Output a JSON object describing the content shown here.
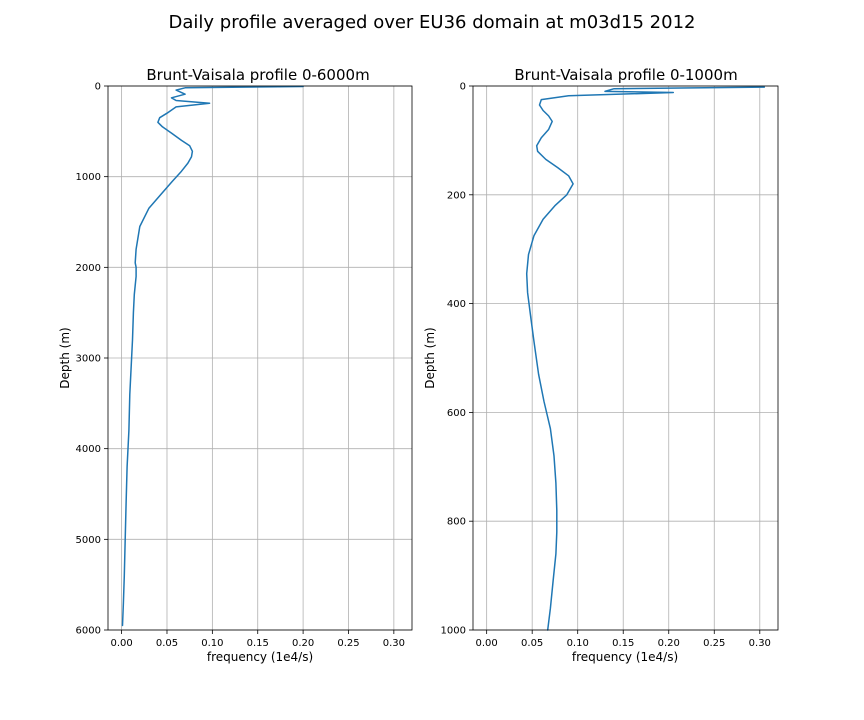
{
  "figure": {
    "suptitle": "Daily profile averaged over EU36 domain at m03d15 2012"
  },
  "chart_data": [
    {
      "type": "line",
      "title": "Brunt-Vaisala profile 0-6000m",
      "xlabel": "frequency (1e4/s)",
      "ylabel": "Depth (m)",
      "xlim": [
        -0.015,
        0.32
      ],
      "ylim": [
        6000,
        0
      ],
      "y_inverted": true,
      "grid": true,
      "xticks": [
        0.0,
        0.05,
        0.1,
        0.15,
        0.2,
        0.25,
        0.3
      ],
      "xtick_labels": [
        "0.00",
        "0.05",
        "0.10",
        "0.15",
        "0.20",
        "0.25",
        "0.30"
      ],
      "yticks": [
        0,
        1000,
        2000,
        3000,
        4000,
        5000,
        6000
      ],
      "ytick_labels": [
        "0",
        "1000",
        "2000",
        "3000",
        "4000",
        "5000",
        "6000"
      ],
      "color": "#1f77b4",
      "series": [
        {
          "x": [
            0.2,
            0.07,
            0.06,
            0.07,
            0.055,
            0.06,
            0.097,
            0.06,
            0.05,
            0.042,
            0.04,
            0.045,
            0.055,
            0.066,
            0.075,
            0.078,
            0.077,
            0.073,
            0.066,
            0.056,
            0.043,
            0.03,
            0.02,
            0.016,
            0.015,
            0.016,
            0.016,
            0.014,
            0.013,
            0.012,
            0.011,
            0.009,
            0.008,
            0.006,
            0.005,
            0.004,
            0.003,
            0.002,
            0.001
          ],
          "y": [
            5,
            20,
            45,
            90,
            130,
            160,
            190,
            230,
            300,
            350,
            400,
            450,
            520,
            600,
            660,
            720,
            780,
            850,
            940,
            1050,
            1200,
            1350,
            1550,
            1800,
            1950,
            2000,
            2100,
            2300,
            2500,
            2800,
            3000,
            3400,
            3800,
            4200,
            4600,
            5000,
            5400,
            5700,
            5950
          ]
        }
      ]
    },
    {
      "type": "line",
      "title": "Brunt-Vaisala profile 0-1000m",
      "xlabel": "frequency (1e4/s)",
      "ylabel": "Depth (m)",
      "xlim": [
        -0.015,
        0.32
      ],
      "ylim": [
        1000,
        0
      ],
      "y_inverted": true,
      "grid": true,
      "xticks": [
        0.0,
        0.05,
        0.1,
        0.15,
        0.2,
        0.25,
        0.3
      ],
      "xtick_labels": [
        "0.00",
        "0.05",
        "0.10",
        "0.15",
        "0.20",
        "0.25",
        "0.30"
      ],
      "yticks": [
        0,
        200,
        400,
        600,
        800,
        1000
      ],
      "ytick_labels": [
        "0",
        "200",
        "400",
        "600",
        "800",
        "1000"
      ],
      "color": "#1f77b4",
      "series": [
        {
          "x": [
            0.305,
            0.14,
            0.13,
            0.205,
            0.09,
            0.06,
            0.058,
            0.062,
            0.068,
            0.072,
            0.068,
            0.06,
            0.055,
            0.056,
            0.065,
            0.078,
            0.09,
            0.095,
            0.088,
            0.075,
            0.062,
            0.052,
            0.046,
            0.044,
            0.045,
            0.048,
            0.052,
            0.057,
            0.063,
            0.07,
            0.074,
            0.076,
            0.077,
            0.077,
            0.076,
            0.073,
            0.07,
            0.067
          ],
          "y": [
            2,
            5,
            10,
            12,
            18,
            25,
            35,
            45,
            55,
            65,
            80,
            95,
            110,
            120,
            135,
            150,
            165,
            180,
            200,
            220,
            245,
            275,
            310,
            345,
            380,
            420,
            470,
            530,
            580,
            630,
            680,
            730,
            780,
            820,
            860,
            910,
            960,
            1000
          ]
        }
      ]
    }
  ]
}
